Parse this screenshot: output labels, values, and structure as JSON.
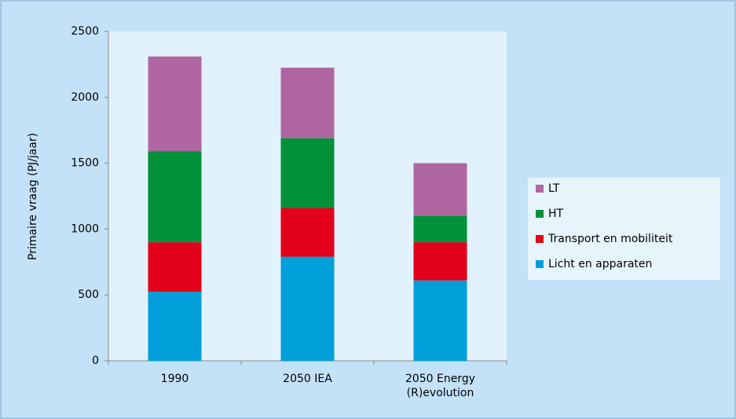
{
  "chart_data": {
    "type": "stacked_bar",
    "y_label": "Primaire vraag (PJ/jaar)",
    "categories": [
      "1990",
      "2050 IEA",
      "2050 Energy (R)evolution"
    ],
    "series": [
      {
        "name": "Licht en apparaten",
        "color": "#009fda",
        "values": [
          525,
          790,
          610
        ]
      },
      {
        "name": "Transport en mobiliteit",
        "color": "#e2001a",
        "values": [
          375,
          370,
          290
        ]
      },
      {
        "name": "HT",
        "color": "#00913a",
        "values": [
          690,
          530,
          200
        ]
      },
      {
        "name": "LT",
        "color": "#b066a0",
        "values": [
          720,
          535,
          400
        ]
      }
    ],
    "ylim": [
      0,
      2500
    ],
    "yticks": [
      0,
      500,
      1000,
      1500,
      2000,
      2500
    ],
    "grid": false,
    "legend": "right"
  }
}
